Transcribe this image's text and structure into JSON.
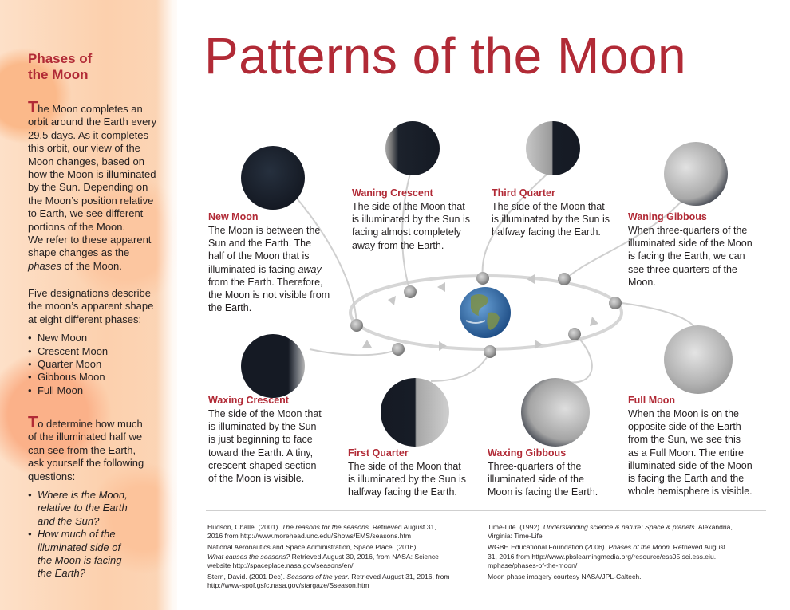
{
  "sidebar": {
    "title_line1": "Phases of",
    "title_line2": "the Moon",
    "para1_cap": "T",
    "para1_lines": [
      "he Moon completes an",
      "orbit around the Earth every",
      "29.5 days. As it completes",
      "this orbit, our view of the",
      "Moon changes, based on",
      "how the Moon is illuminated",
      "by the Sun. Depending on",
      "the Moon’s position relative",
      "to Earth, we see different",
      "portions of the Moon.",
      "We refer to these apparent",
      "shape changes as the"
    ],
    "para1_last_it": "phases",
    "para1_last_rest": " of the Moon.",
    "para2_lines": [
      "Five designations describe",
      "the moon’s apparent shape",
      "at eight different phases:"
    ],
    "bullets": [
      "New Moon",
      "Crescent Moon",
      "Quarter Moon",
      "Gibbous Moon",
      "Full Moon"
    ],
    "para3_cap": "T",
    "para3_lines": [
      "o determine how much",
      "of the illuminated half we",
      "can see from the Earth,",
      "ask yourself the following",
      "questions:"
    ],
    "questions": [
      [
        "Where is the Moon,",
        "relative to the Earth",
        "and the Sun?"
      ],
      [
        "How much of the",
        "illuminated side of",
        "the Moon is facing",
        "the Earth?"
      ]
    ]
  },
  "title": "Patterns of the Moon",
  "phases": {
    "new_moon": {
      "title": "New Moon",
      "lines": [
        "The Moon is between the",
        "Sun and the Earth. The",
        "half of the Moon that is"
      ],
      "line4_pre": "illuminated is facing ",
      "line4_it": "away",
      "lines_after": [
        "from the Earth. Therefore,",
        "the Moon is not visible from",
        "the Earth."
      ]
    },
    "waning_crescent": {
      "title": "Waning Crescent",
      "lines": [
        "The side of the Moon that",
        "is illuminated by the Sun is",
        "facing almost completely",
        "away from the Earth."
      ]
    },
    "third_quarter": {
      "title": "Third Quarter",
      "lines": [
        "The side of the Moon that",
        "is illuminated by the Sun is",
        "halfway facing the Earth."
      ]
    },
    "waning_gibbous": {
      "title": "Waning Gibbous",
      "lines": [
        "When three-quarters of the",
        "illuminated side of the Moon",
        "is facing the Earth, we can",
        "see three-quarters of the",
        "Moon."
      ]
    },
    "waxing_crescent": {
      "title": "Waxing Crescent",
      "lines": [
        "The side of the Moon that",
        "is illuminated by the Sun",
        "is just beginning to face",
        "toward the Earth. A tiny,",
        "crescent-shaped section",
        "of the Moon is visible."
      ]
    },
    "first_quarter": {
      "title": "First Quarter",
      "lines": [
        "The side of the Moon that",
        "is illuminated by the Sun is",
        "halfway facing the Earth."
      ]
    },
    "waxing_gibbous": {
      "title": "Waxing Gibbous",
      "lines": [
        "Three-quarters of the",
        "illuminated side of the",
        "Moon is facing the Earth."
      ]
    },
    "full_moon": {
      "title": "Full Moon",
      "lines": [
        "When the Moon is on the",
        "opposite side of the Earth",
        "from the Sun, we see this",
        "as a Full Moon. The entire",
        "illuminated side of the Moon",
        "is facing the Earth and the",
        "whole hemisphere is visible."
      ]
    }
  },
  "references_left": [
    {
      "pre": "Hudson, Challe. (2001). ",
      "it": "The reasons for the seasons.",
      "post": " Retrieved August 31,",
      "cont": "2016 from http://www.morehead.unc.edu/Shows/EMS/seasons.htm"
    },
    {
      "pre": "National Aeronautics and Space Administration, Space Place. (2016).",
      "it": "",
      "post": "",
      "cont": ""
    },
    {
      "pre": "",
      "it": "What causes the seasons?",
      "post": " Retrieved August 30, 2016, from NASA: Science",
      "cont": "website http://spaceplace.nasa.gov/seasons/en/"
    },
    {
      "pre": "Stern, David. (2001 Dec). ",
      "it": "Seasons of the year.",
      "post": " Retrieved August 31, 2016, from",
      "cont": "http://www-spof.gsfc.nasa.gov/stargaze/Sseason.htm"
    }
  ],
  "references_right": [
    {
      "pre": "Time-Life. (1992). ",
      "it": "Understanding science & nature: Space & planets.",
      "post": " Alexandria,",
      "cont": "Virginia: Time-Life"
    },
    {
      "pre": "WGBH Educational Foundation (2006). ",
      "it": "Phases of the Moon.",
      "post": " Retrieved August",
      "cont": "31, 2016 from http://www.pbslearningmedia.org/resource/ess05.sci.ess.eiu.",
      "cont2": "mphase/phases-of-the-moon/"
    },
    {
      "pre": "Moon phase imagery courtesy NASA/JPL-Caltech.",
      "it": "",
      "post": "",
      "cont": ""
    }
  ],
  "colors": {
    "accent": "#b12a36",
    "text": "#231f20",
    "sidebar": "#fcd0ad"
  }
}
